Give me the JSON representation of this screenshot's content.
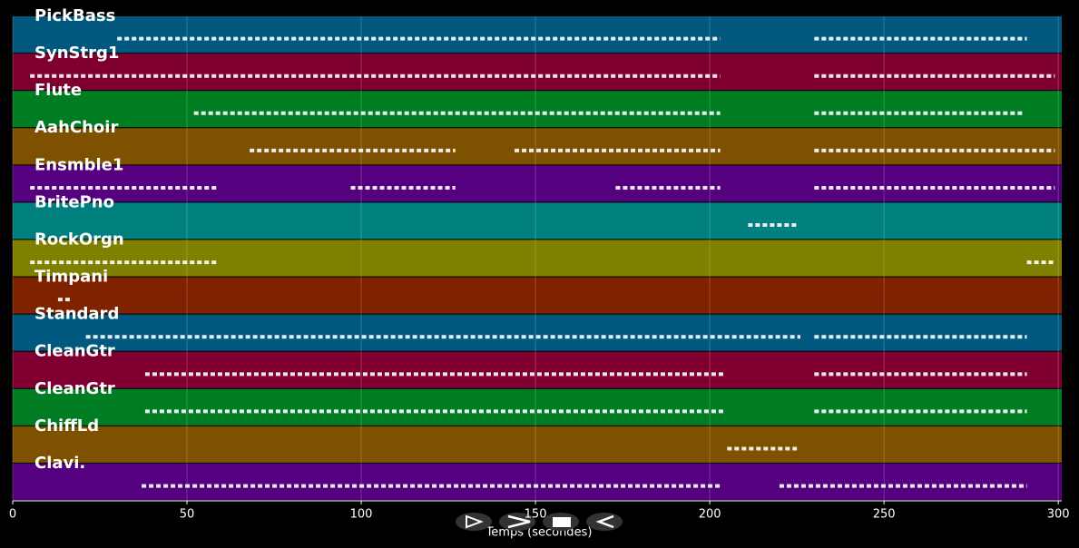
{
  "chart_data": {
    "type": "piano-roll",
    "xlabel": "Temps (secondes)",
    "xlim": [
      0,
      301
    ],
    "xticks": [
      0,
      50,
      100,
      150,
      200,
      250,
      300
    ],
    "grid": true,
    "tracks": [
      {
        "name": "PickBass",
        "color": "#00587f",
        "spans": [
          [
            30,
            203
          ],
          [
            230,
            291
          ]
        ]
      },
      {
        "name": "SynStrg1",
        "color": "#7f0030",
        "spans": [
          [
            5,
            203
          ],
          [
            230,
            299
          ]
        ]
      },
      {
        "name": "Flute",
        "color": "#007c22",
        "spans": [
          [
            52,
            203
          ],
          [
            230,
            290
          ]
        ]
      },
      {
        "name": "AahChoir",
        "color": "#7d5100",
        "spans": [
          [
            68,
            127
          ],
          [
            144,
            203
          ],
          [
            230,
            299
          ]
        ]
      },
      {
        "name": "Ensmble1",
        "color": "#55007f",
        "spans": [
          [
            5,
            59
          ],
          [
            97,
            127
          ],
          [
            173,
            203
          ],
          [
            230,
            299
          ]
        ]
      },
      {
        "name": "BritePno",
        "color": "#007f7f",
        "spans": [
          [
            211,
            225
          ]
        ]
      },
      {
        "name": "RockOrgn",
        "color": "#7f7f00",
        "spans": [
          [
            5,
            59
          ],
          [
            291,
            299
          ]
        ]
      },
      {
        "name": "Timpani",
        "color": "#7f2200",
        "spans": [
          [
            13,
            17
          ]
        ]
      },
      {
        "name": "Standard",
        "color": "#00587f",
        "spans": [
          [
            21,
            226
          ],
          [
            230,
            291
          ]
        ]
      },
      {
        "name": "CleanGtr",
        "color": "#7f0030",
        "spans": [
          [
            38,
            204
          ],
          [
            230,
            291
          ]
        ]
      },
      {
        "name": "CleanGtr",
        "color": "#007c22",
        "spans": [
          [
            38,
            204
          ],
          [
            230,
            291
          ]
        ]
      },
      {
        "name": "ChiffLd",
        "color": "#7d5100",
        "spans": [
          [
            205,
            225
          ]
        ]
      },
      {
        "name": "Clavi.",
        "color": "#55007f",
        "spans": [
          [
            37,
            203
          ],
          [
            220,
            291
          ]
        ]
      }
    ]
  }
}
